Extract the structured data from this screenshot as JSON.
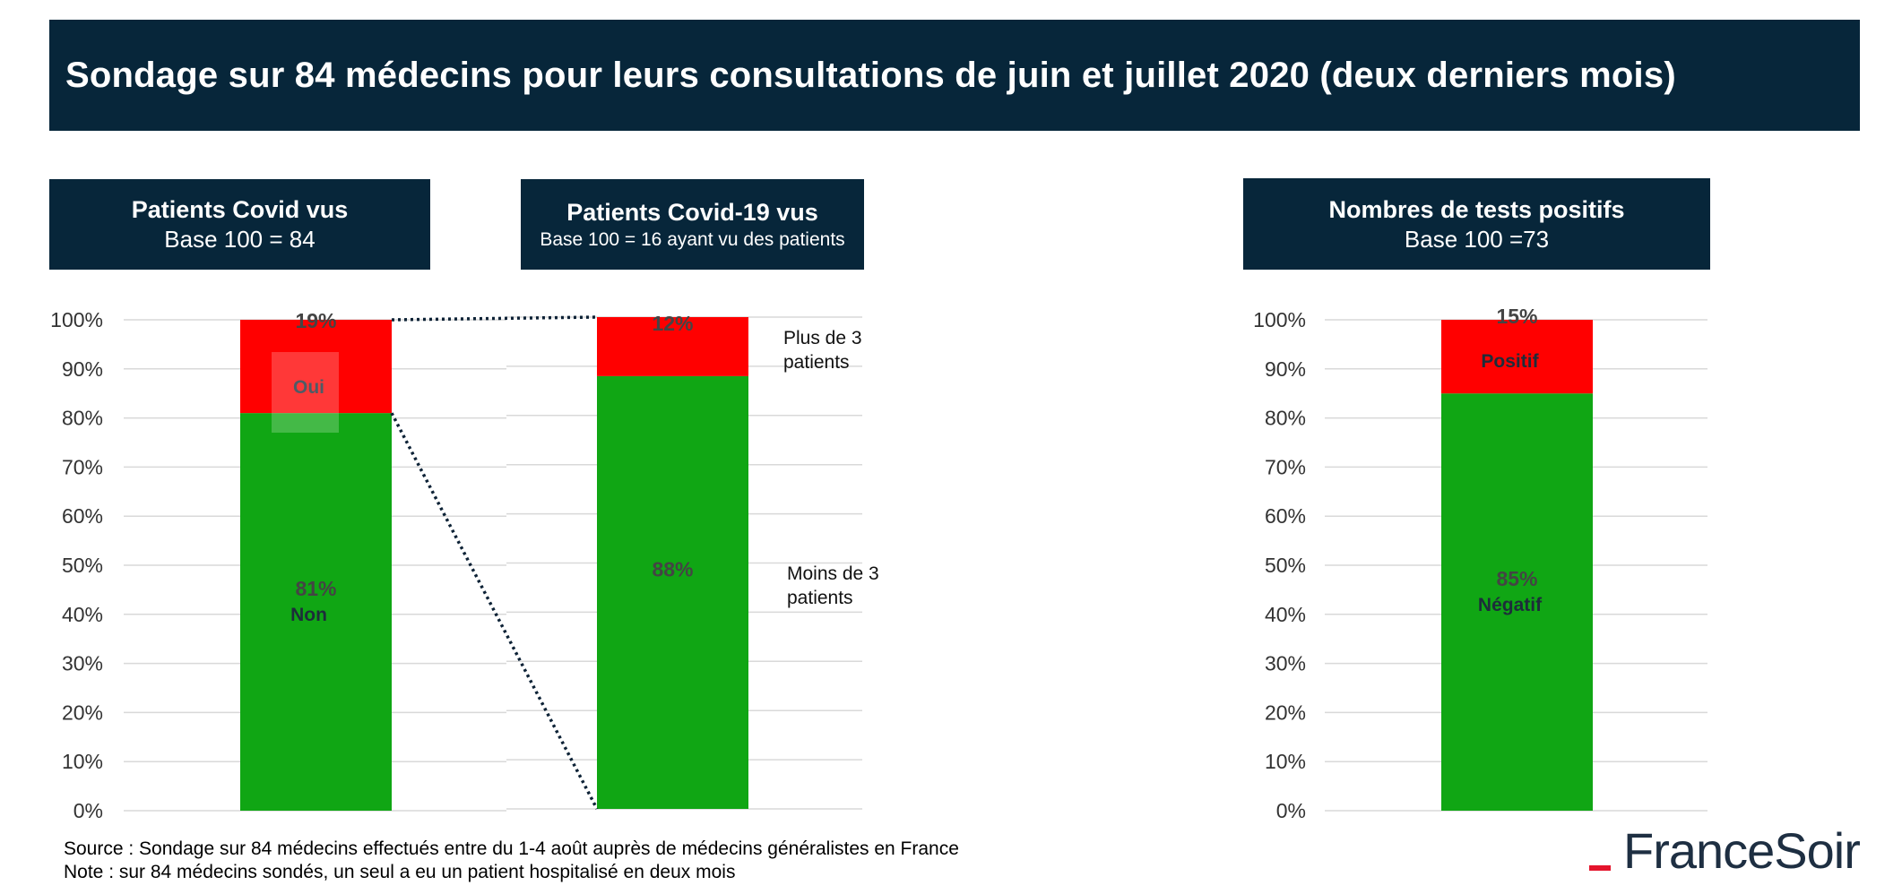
{
  "title": "Sondage sur 84 médecins pour leurs consultations de juin et juillet 2020 (deux derniers mois)",
  "headers": [
    {
      "title": "Patients Covid vus",
      "subtitle": "Base 100 = 84"
    },
    {
      "title": "Patients Covid-19 vus",
      "subtitle": "Base 100 = 16 ayant vu des patients"
    },
    {
      "title": "Nombres de tests positifs",
      "subtitle": "Base 100 =73"
    }
  ],
  "side_notes": {
    "top": "Plus de 3 patients",
    "bottom": "Moins de 3 patients"
  },
  "footer": {
    "source": "Source : Sondage sur 84 médecins effectués entre du 1-4 août auprès de médecins généralistes en France",
    "note": "Note : sur 84 médecins sondés, un seul a eu un patient hospitalisé en deux mois"
  },
  "logo": {
    "brand": "FranceSoir",
    "dash_color": "#e4142c"
  },
  "colors": {
    "green": "#10a614",
    "red": "#ff0000",
    "banner": "#07263a"
  },
  "chart_data": [
    {
      "type": "bar",
      "stacked": true,
      "title": "Patients Covid vus",
      "ylim": [
        0,
        100
      ],
      "yticks": [
        "0%",
        "10%",
        "20%",
        "30%",
        "40%",
        "50%",
        "60%",
        "70%",
        "80%",
        "90%",
        "100%"
      ],
      "series": [
        {
          "name": "Non",
          "value": 81,
          "label": "81%",
          "color": "#10a614"
        },
        {
          "name": "Oui",
          "value": 19,
          "label": "19%",
          "color": "#ff0000"
        }
      ]
    },
    {
      "type": "bar",
      "stacked": true,
      "title": "Patients Covid-19 vus",
      "ylim": [
        0,
        100
      ],
      "series": [
        {
          "name": "Moins de 3 patients",
          "value": 88,
          "label": "88%",
          "color": "#10a614"
        },
        {
          "name": "Plus de 3 patients",
          "value": 12,
          "label": "12%",
          "color": "#ff0000"
        }
      ]
    },
    {
      "type": "bar",
      "stacked": true,
      "title": "Nombres de tests positifs",
      "ylim": [
        0,
        100
      ],
      "yticks": [
        "0%",
        "10%",
        "20%",
        "30%",
        "40%",
        "50%",
        "60%",
        "70%",
        "80%",
        "90%",
        "100%"
      ],
      "series": [
        {
          "name": "Négatif",
          "value": 85,
          "label": "85%",
          "color": "#10a614"
        },
        {
          "name": "Positif",
          "value": 15,
          "label": "15%",
          "color": "#ff0000"
        }
      ]
    }
  ]
}
